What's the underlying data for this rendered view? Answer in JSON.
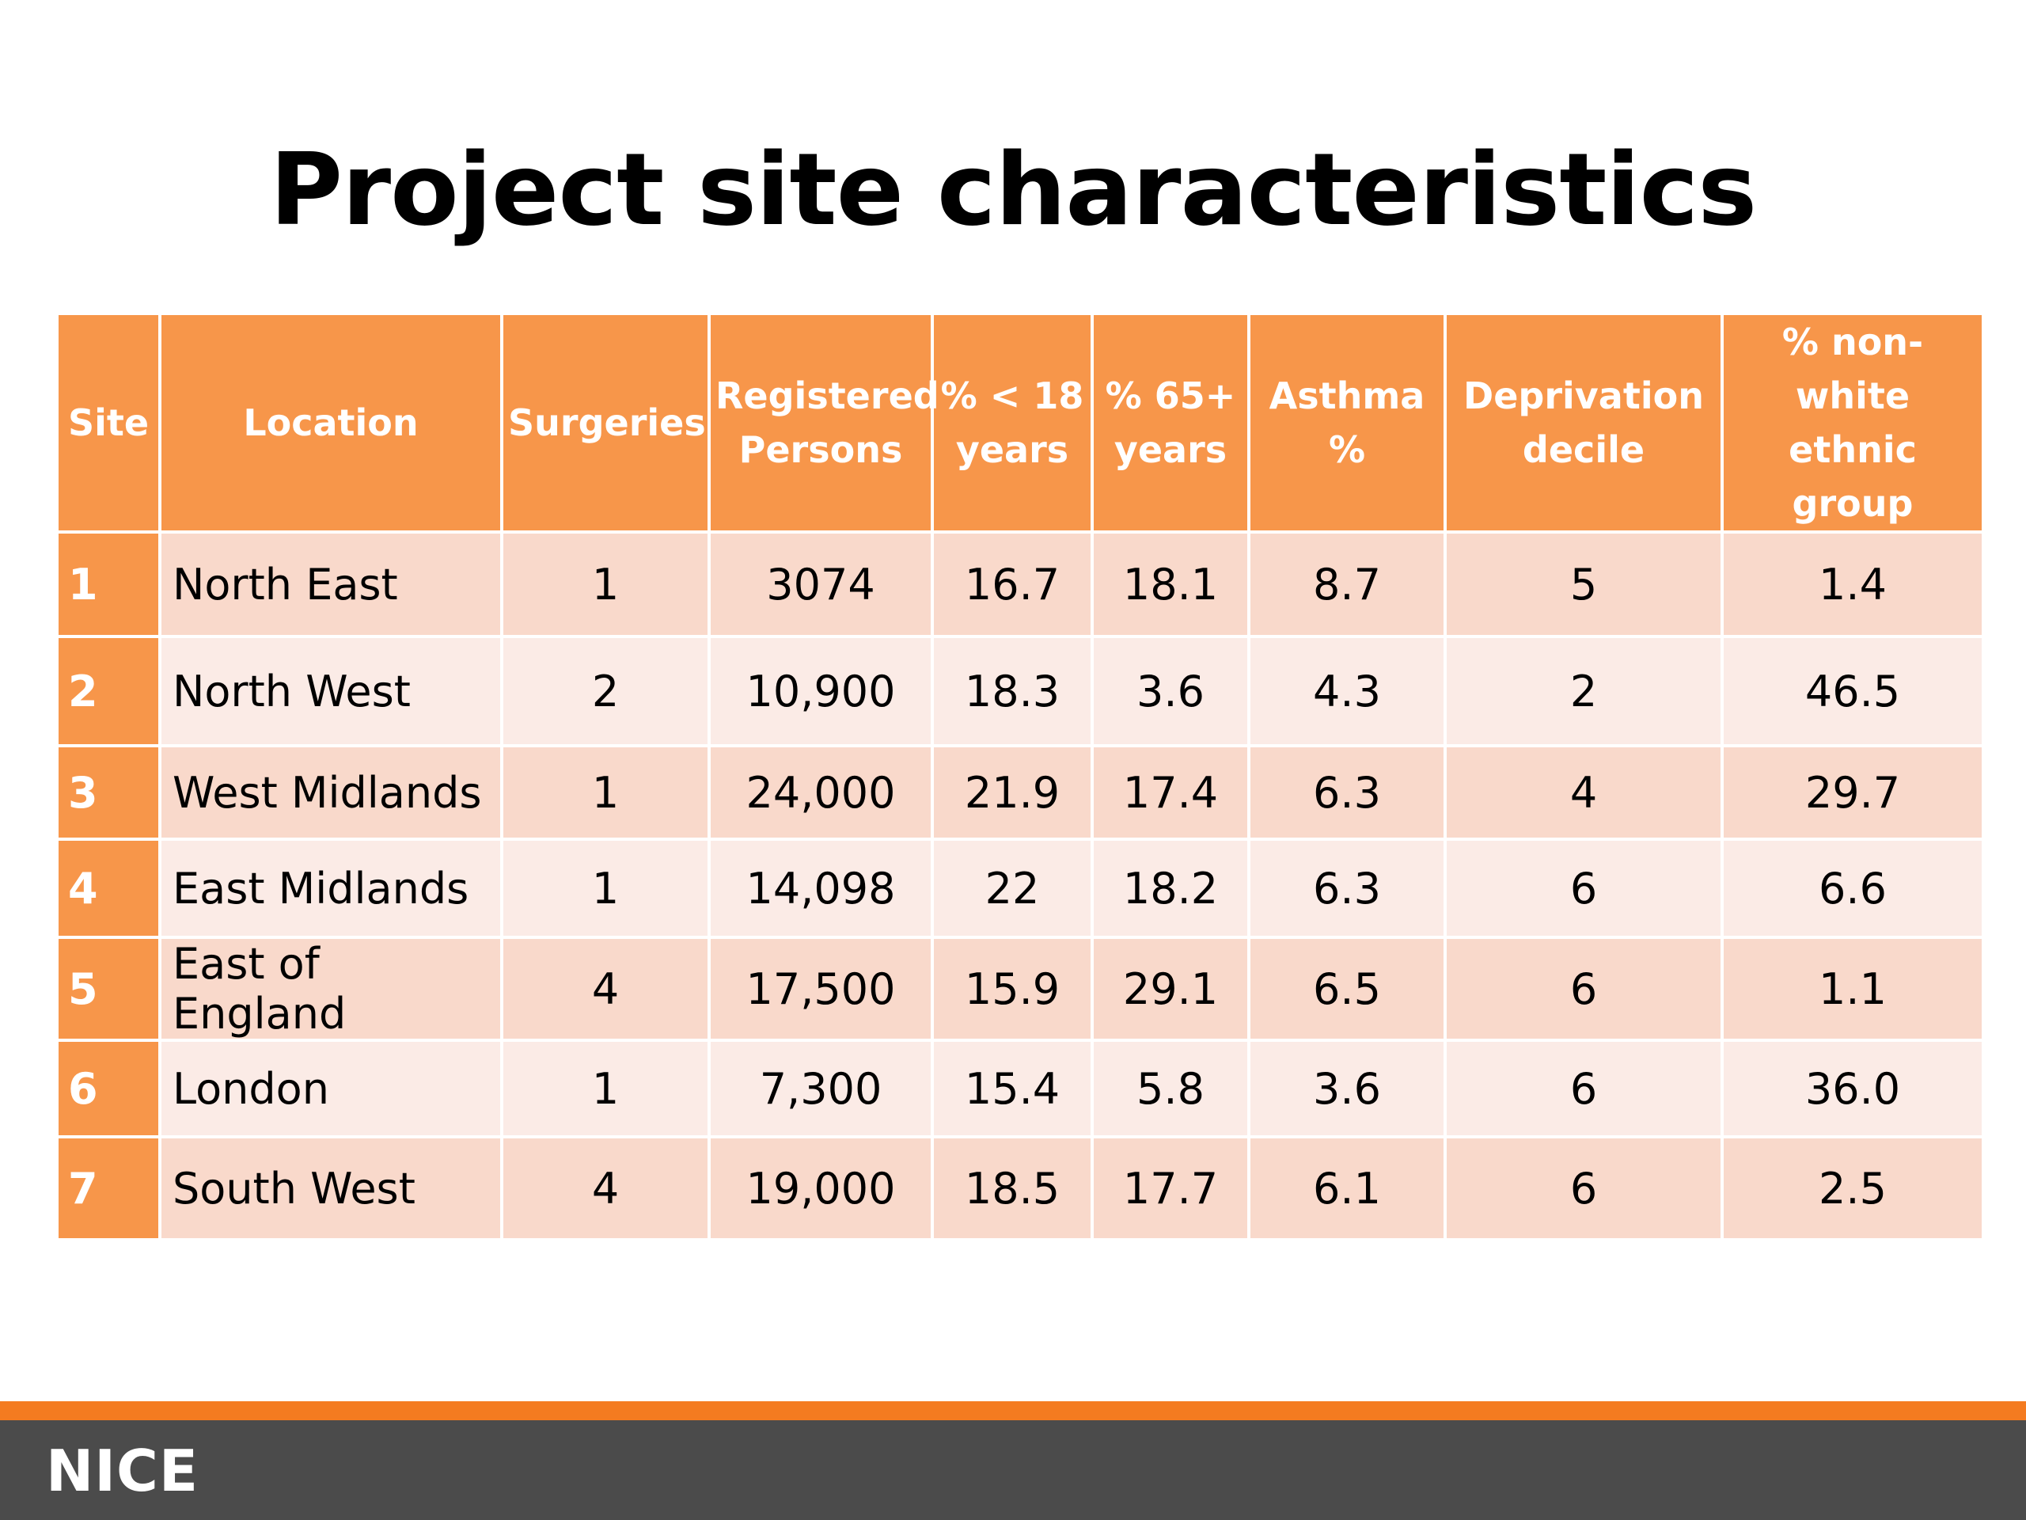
{
  "title": "Project site characteristics",
  "table": {
    "headers": [
      "Site",
      "Location",
      "Surgeries",
      "Registered\nPersons",
      "% < 18\nyears",
      "%  65+\nyears",
      "Asthma\n%",
      "Deprivation\ndecile",
      "% non-white\nethnic group"
    ],
    "rows": [
      [
        "1",
        "North East",
        "1",
        "3074",
        "16.7",
        "18.1",
        "8.7",
        "5",
        "1.4"
      ],
      [
        "2",
        "North West",
        "2",
        "10,900",
        "18.3",
        "3.6",
        "4.3",
        "2",
        "46.5"
      ],
      [
        "3",
        "West Midlands",
        "1",
        "24,000",
        "21.9",
        "17.4",
        "6.3",
        "4",
        "29.7"
      ],
      [
        "4",
        "East Midlands",
        "1",
        "14,098",
        "22",
        "18.2",
        "6.3",
        "6",
        "6.6"
      ],
      [
        "5",
        "East of England",
        "4",
        "17,500",
        "15.9",
        "29.1",
        "6.5",
        "6",
        "1.1"
      ],
      [
        "6",
        "London",
        "1",
        "7,300",
        "15.4",
        "5.8",
        "3.6",
        "6",
        "36.0"
      ],
      [
        "7",
        "South West",
        "4",
        "19,000",
        "18.5",
        "17.7",
        "6.1",
        "6",
        "2.5"
      ]
    ]
  },
  "footer": {
    "logo": "NICE"
  },
  "colors": {
    "header_fill": "#f7964a",
    "row_odd": "#f9d9cb",
    "row_even": "#fbebe6",
    "footer_accent": "#f47b20",
    "footer_bar": "#4b4b4b"
  }
}
